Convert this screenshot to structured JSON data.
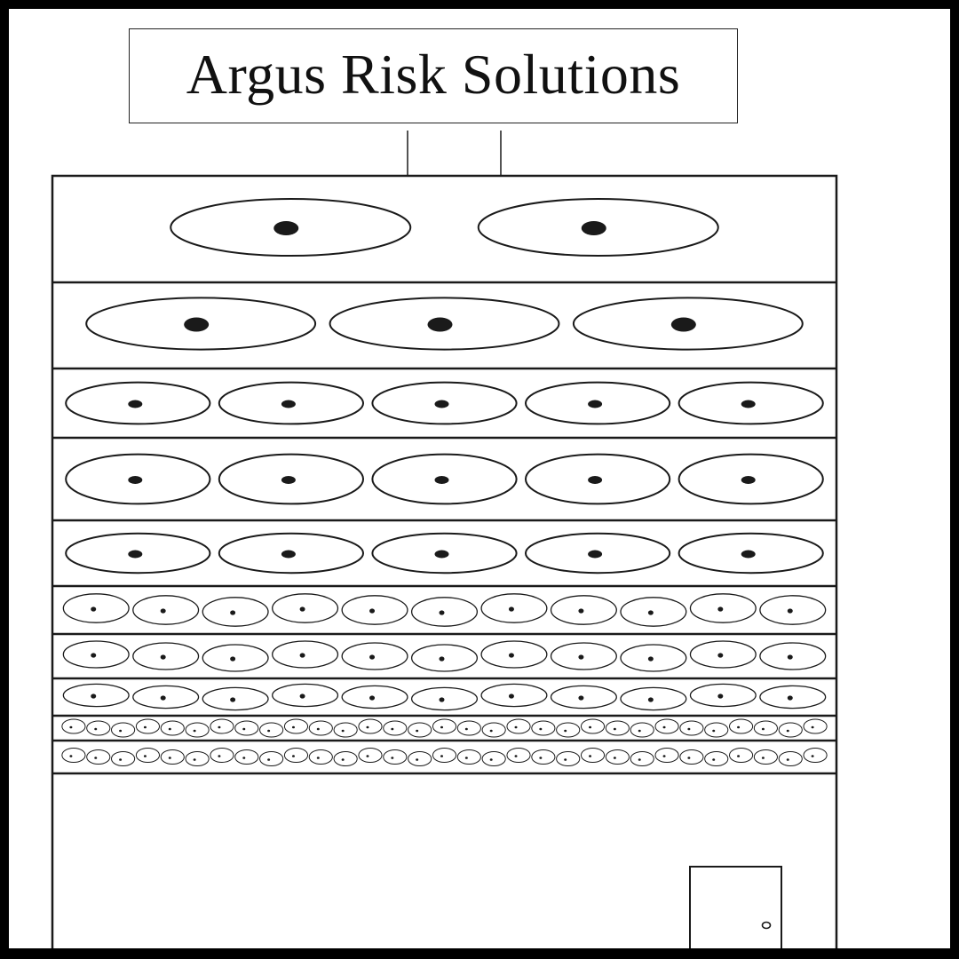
{
  "sign": {
    "text": "Argus Risk Solutions"
  },
  "building": {
    "rows": [
      {
        "eyes": 2
      },
      {
        "eyes": 3
      },
      {
        "eyes": 5
      },
      {
        "eyes": 5
      },
      {
        "eyes": 5
      },
      {
        "eyes": 11
      },
      {
        "eyes": 11
      },
      {
        "eyes": 11
      },
      {
        "eyes": 31
      },
      {
        "eyes": 31
      }
    ]
  },
  "colors": {
    "ink": "#1a1a1a",
    "paper": "#ffffff",
    "border": "#000000"
  }
}
